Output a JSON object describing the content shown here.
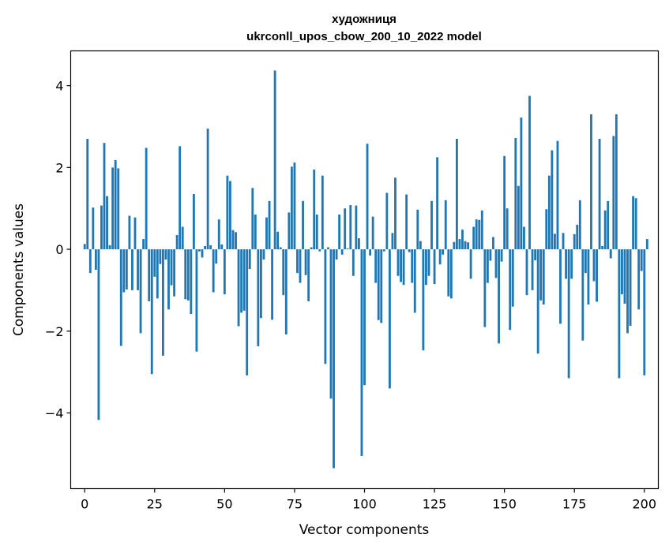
{
  "chart_data": {
    "type": "bar",
    "title": "художниця",
    "subtitle": "ukrconll_upos_cbow_200_10_2022 model",
    "xlabel": "Vector components",
    "ylabel": "Components values",
    "xlim": [
      -5,
      205
    ],
    "ylim": [
      -5.85,
      4.85
    ],
    "xticks": [
      0,
      25,
      50,
      75,
      100,
      125,
      150,
      175,
      200
    ],
    "yticks": [
      -4,
      -2,
      0,
      2,
      4
    ],
    "ytick_labels": [
      "−4",
      "−2",
      "0",
      "2",
      "4"
    ],
    "grid": false,
    "bar_color": "#1f77b4",
    "values": [
      0.13,
      2.7,
      -0.58,
      1.02,
      -0.5,
      -4.17,
      1.07,
      2.6,
      1.3,
      0.1,
      2.0,
      2.18,
      1.98,
      -2.36,
      -1.05,
      -0.98,
      0.82,
      -1.0,
      0.78,
      -1.0,
      -2.05,
      0.25,
      2.48,
      -1.27,
      -3.05,
      -0.67,
      -1.2,
      -0.36,
      -2.6,
      -0.25,
      -1.47,
      -0.88,
      -1.15,
      0.35,
      2.52,
      0.55,
      -1.22,
      -1.25,
      -1.58,
      1.35,
      -2.5,
      -0.05,
      -0.2,
      0.08,
      2.95,
      0.1,
      -1.05,
      -0.35,
      0.73,
      0.12,
      -1.1,
      1.8,
      1.67,
      0.47,
      0.42,
      -1.88,
      -1.55,
      -1.5,
      -3.08,
      -0.48,
      1.5,
      0.85,
      -2.37,
      -1.68,
      -0.25,
      0.78,
      1.18,
      -1.72,
      4.37,
      0.43,
      0.05,
      -1.12,
      -2.08,
      0.9,
      2.02,
      2.12,
      -0.58,
      -0.82,
      1.18,
      -0.63,
      -1.27,
      0.05,
      1.95,
      0.85,
      -0.05,
      1.8,
      -2.8,
      0.05,
      -3.65,
      -5.35,
      -0.25,
      0.85,
      -0.13,
      1.0,
      0.02,
      1.08,
      -0.65,
      1.07,
      0.27,
      -5.05,
      -3.32,
      2.58,
      -0.15,
      0.8,
      -0.82,
      -1.73,
      -1.8,
      -0.05,
      1.38,
      -3.4,
      0.4,
      1.75,
      -0.65,
      -0.8,
      -0.87,
      1.34,
      -0.07,
      -0.82,
      -1.55,
      0.97,
      0.2,
      -2.47,
      -0.87,
      -0.65,
      1.18,
      -0.85,
      2.25,
      -0.37,
      -0.13,
      1.2,
      -1.15,
      -1.2,
      0.18,
      2.7,
      0.25,
      0.48,
      0.2,
      0.17,
      -0.72,
      0.55,
      0.73,
      0.72,
      0.95,
      -1.9,
      -0.82,
      -0.28,
      0.3,
      -0.7,
      -2.3,
      -0.3,
      2.28,
      1.0,
      -1.97,
      -1.4,
      2.72,
      1.55,
      3.22,
      0.55,
      -1.12,
      3.75,
      -1.0,
      -0.27,
      -2.55,
      -1.25,
      -1.35,
      0.98,
      1.8,
      2.42,
      0.38,
      2.65,
      -1.82,
      0.4,
      -0.72,
      -3.15,
      -0.72,
      0.37,
      0.6,
      1.2,
      -2.23,
      -0.58,
      -1.35,
      3.3,
      -0.78,
      -1.28,
      2.7,
      0.08,
      0.95,
      1.18,
      -0.22,
      2.77,
      3.3,
      -3.15,
      -1.1,
      -1.33,
      -2.05,
      -1.87,
      1.3,
      1.25,
      -1.47,
      -0.53,
      -3.08,
      0.25
    ]
  }
}
